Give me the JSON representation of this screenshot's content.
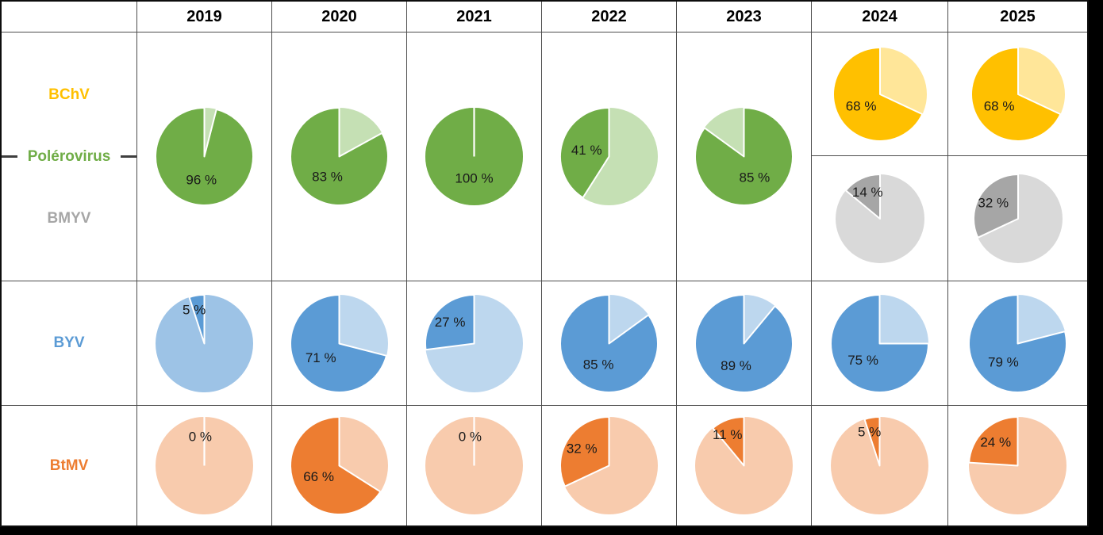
{
  "table": {
    "years": [
      "2019",
      "2020",
      "2021",
      "2022",
      "2023",
      "2024",
      "2025"
    ],
    "row_groups": [
      {
        "id": "polerovirus-group",
        "labels": [
          {
            "text": "BChV",
            "color": "#FFC000"
          },
          {
            "text": "Polérovirus",
            "color": "#70AD47"
          },
          {
            "text": "BMYV",
            "color": "#A6A6A6"
          }
        ]
      },
      {
        "id": "byv",
        "labels": [
          {
            "text": "BYV",
            "color": "#5B9BD5"
          }
        ]
      },
      {
        "id": "btmv",
        "labels": [
          {
            "text": "BtMV",
            "color": "#ED7D31"
          }
        ]
      }
    ]
  },
  "chart_data": {
    "type": "pie",
    "title": "",
    "description": "Grid of pie charts showing yearly percentage prevalence of beet viruses (Polérovirus BChV/BMYV, BYV, BtMV) from 2019 to 2025; dark slice = stated percentage, pale slice = remainder.",
    "legend_position": "left-column-row-labels",
    "pies": [
      {
        "key": "polerovirus-2019",
        "virus": "Polérovirus",
        "year": "2019",
        "value_pct": 96,
        "label": "96 %",
        "dark_color": "#70AD47",
        "light_color": "#C5E0B4",
        "dark_start_deg": 14.4
      },
      {
        "key": "polerovirus-2020",
        "virus": "Polérovirus",
        "year": "2020",
        "value_pct": 83,
        "label": "83 %",
        "dark_color": "#70AD47",
        "light_color": "#C5E0B4",
        "dark_start_deg": 61.2
      },
      {
        "key": "polerovirus-2021",
        "virus": "Polérovirus",
        "year": "2021",
        "value_pct": 100,
        "label": "100 %",
        "dark_color": "#70AD47",
        "light_color": "#C5E0B4",
        "dark_start_deg": 0
      },
      {
        "key": "polerovirus-2022",
        "virus": "Polérovirus",
        "year": "2022",
        "value_pct": 41,
        "label": "41 %",
        "dark_color": "#70AD47",
        "light_color": "#C5E0B4",
        "dark_start_deg": 212.4
      },
      {
        "key": "polerovirus-2023",
        "virus": "Polérovirus",
        "year": "2023",
        "value_pct": 85,
        "label": "85 %",
        "dark_color": "#70AD47",
        "light_color": "#C5E0B4",
        "dark_start_deg": 0
      },
      {
        "key": "bchv-2024",
        "virus": "BChV",
        "year": "2024",
        "value_pct": 68,
        "label": "68 %",
        "dark_color": "#FFC000",
        "light_color": "#FFE699",
        "dark_start_deg": 115.2
      },
      {
        "key": "bchv-2025",
        "virus": "BChV",
        "year": "2025",
        "value_pct": 68,
        "label": "68 %",
        "dark_color": "#FFC000",
        "light_color": "#FFE699",
        "dark_start_deg": 115.2
      },
      {
        "key": "bmyv-2024",
        "virus": "BMYV",
        "year": "2024",
        "value_pct": 14,
        "label": "14 %",
        "dark_color": "#A6A6A6",
        "light_color": "#D9D9D9",
        "dark_start_deg": 309.6
      },
      {
        "key": "bmyv-2025",
        "virus": "BMYV",
        "year": "2025",
        "value_pct": 32,
        "label": "32 %",
        "dark_color": "#A6A6A6",
        "light_color": "#D9D9D9",
        "dark_start_deg": 244.8
      },
      {
        "key": "byv-2019",
        "virus": "BYV",
        "year": "2019",
        "value_pct": 5,
        "label": "5 %",
        "dark_color": "#5B9BD5",
        "light_color": "#9DC3E6",
        "dark_start_deg": 342
      },
      {
        "key": "byv-2020",
        "virus": "BYV",
        "year": "2020",
        "value_pct": 71,
        "label": "71 %",
        "dark_color": "#5B9BD5",
        "light_color": "#BDD7EE",
        "dark_start_deg": 104.4
      },
      {
        "key": "byv-2021",
        "virus": "BYV",
        "year": "2021",
        "value_pct": 27,
        "label": "27 %",
        "dark_color": "#5B9BD5",
        "light_color": "#BDD7EE",
        "dark_start_deg": 262.8
      },
      {
        "key": "byv-2022",
        "virus": "BYV",
        "year": "2022",
        "value_pct": 85,
        "label": "85 %",
        "dark_color": "#5B9BD5",
        "light_color": "#BDD7EE",
        "dark_start_deg": 54
      },
      {
        "key": "byv-2023",
        "virus": "BYV",
        "year": "2023",
        "value_pct": 89,
        "label": "89 %",
        "dark_color": "#5B9BD5",
        "light_color": "#BDD7EE",
        "dark_start_deg": 39.6
      },
      {
        "key": "byv-2024",
        "virus": "BYV",
        "year": "2024",
        "value_pct": 75,
        "label": "75 %",
        "dark_color": "#5B9BD5",
        "light_color": "#BDD7EE",
        "dark_start_deg": 90
      },
      {
        "key": "byv-2025",
        "virus": "BYV",
        "year": "2025",
        "value_pct": 79,
        "label": "79 %",
        "dark_color": "#5B9BD5",
        "light_color": "#BDD7EE",
        "dark_start_deg": 75.6
      },
      {
        "key": "btmv-2019",
        "virus": "BtMV",
        "year": "2019",
        "value_pct": 0,
        "label": "0 %",
        "dark_color": "#ED7D31",
        "light_color": "#F8CBAD",
        "dark_start_deg": 0
      },
      {
        "key": "btmv-2020",
        "virus": "BtMV",
        "year": "2020",
        "value_pct": 66,
        "label": "66 %",
        "dark_color": "#ED7D31",
        "light_color": "#F8CBAD",
        "dark_start_deg": 122.4
      },
      {
        "key": "btmv-2021",
        "virus": "BtMV",
        "year": "2021",
        "value_pct": 0,
        "label": "0 %",
        "dark_color": "#ED7D31",
        "light_color": "#F8CBAD",
        "dark_start_deg": 0
      },
      {
        "key": "btmv-2022",
        "virus": "BtMV",
        "year": "2022",
        "value_pct": 32,
        "label": "32 %",
        "dark_color": "#ED7D31",
        "light_color": "#F8CBAD",
        "dark_start_deg": 244.8
      },
      {
        "key": "btmv-2023",
        "virus": "BtMV",
        "year": "2023",
        "value_pct": 11,
        "label": "11 %",
        "dark_color": "#ED7D31",
        "light_color": "#F8CBAD",
        "dark_start_deg": 320.4
      },
      {
        "key": "btmv-2024",
        "virus": "BtMV",
        "year": "2024",
        "value_pct": 5,
        "label": "5 %",
        "dark_color": "#ED7D31",
        "light_color": "#F8CBAD",
        "dark_start_deg": 342
      },
      {
        "key": "btmv-2025",
        "virus": "BtMV",
        "year": "2025",
        "value_pct": 24,
        "label": "24 %",
        "dark_color": "#ED7D31",
        "light_color": "#F8CBAD",
        "dark_start_deg": 273.6
      }
    ]
  }
}
